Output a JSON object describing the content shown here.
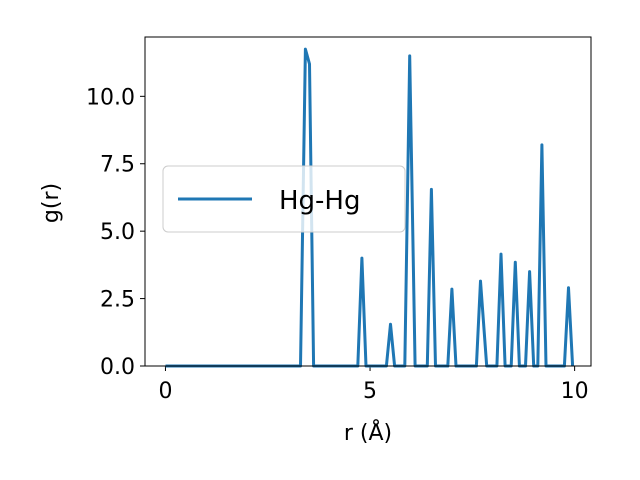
{
  "chart_data": {
    "type": "line",
    "title": "",
    "xlabel": "r (Å)",
    "ylabel": "g(r)",
    "xlim": [
      -0.5,
      10.4
    ],
    "ylim": [
      0,
      12.2
    ],
    "xticks": [
      0,
      5,
      10
    ],
    "xtick_labels": [
      "0",
      "5",
      "10"
    ],
    "yticks": [
      0.0,
      2.5,
      5.0,
      7.5,
      10.0
    ],
    "ytick_labels": [
      "0.0",
      "2.5",
      "5.0",
      "7.5",
      "10.0"
    ],
    "grid": false,
    "legend_position": "center-left",
    "colors": {
      "line": "#1f77b4",
      "axes": "#000000",
      "legend_border": "#cccccc"
    },
    "series": [
      {
        "name": "Hg-Hg",
        "x": [
          0,
          3.3,
          3.42,
          3.52,
          3.62,
          4.7,
          4.8,
          4.9,
          5.4,
          5.5,
          5.6,
          5.85,
          5.97,
          6.1,
          6.4,
          6.5,
          6.6,
          6.9,
          7.0,
          7.1,
          7.6,
          7.7,
          7.85,
          8.1,
          8.2,
          8.3,
          8.45,
          8.55,
          8.65,
          8.8,
          8.9,
          9.0,
          9.1,
          9.2,
          9.3,
          9.75,
          9.85,
          9.95
        ],
        "y": [
          0,
          0,
          11.75,
          11.2,
          0,
          0,
          4.0,
          0,
          0,
          1.55,
          0,
          0,
          11.5,
          0,
          0,
          6.55,
          0,
          0,
          2.85,
          0,
          0,
          3.15,
          0,
          0,
          4.15,
          0,
          0,
          3.85,
          0,
          0,
          3.5,
          0,
          0,
          8.2,
          0,
          0,
          2.9,
          0
        ]
      }
    ]
  }
}
